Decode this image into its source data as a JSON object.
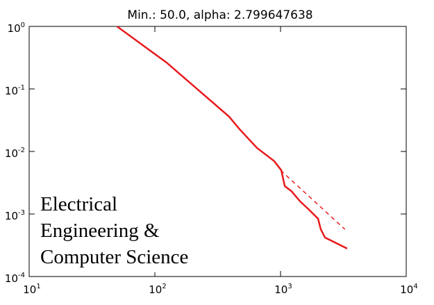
{
  "chart_data": {
    "type": "line",
    "title": "Min.: 50.0, alpha: 2.799647638",
    "xscale": "log",
    "yscale": "log",
    "xlim": [
      10,
      10000
    ],
    "ylim": [
      0.0001,
      1
    ],
    "xticks": [
      {
        "value": 10,
        "label": "10",
        "exponent": "1"
      },
      {
        "value": 100,
        "label": "10",
        "exponent": "2"
      },
      {
        "value": 1000,
        "label": "10",
        "exponent": "3"
      },
      {
        "value": 10000,
        "label": "10",
        "exponent": "4"
      }
    ],
    "yticks": [
      {
        "value": 1,
        "label": "10",
        "exponent": "0"
      },
      {
        "value": 0.1,
        "label": "10",
        "exponent": "-1"
      },
      {
        "value": 0.01,
        "label": "10",
        "exponent": "-2"
      },
      {
        "value": 0.001,
        "label": "10",
        "exponent": "-3"
      },
      {
        "value": 0.0001,
        "label": "10",
        "exponent": "-4"
      }
    ],
    "series": [
      {
        "color": "#e8191b",
        "style": "solid",
        "x": [
          50,
          124,
          390,
          472,
          649,
          891,
          1014,
          1080,
          1225,
          1428,
          1686,
          1988,
          2090,
          2258,
          3390
        ],
        "values": [
          1,
          0.264,
          0.036,
          0.0227,
          0.0114,
          0.007,
          0.005,
          0.0028,
          0.0023,
          0.0016,
          0.00117,
          0.00084,
          0.00057,
          0.00042,
          0.00028
        ]
      },
      {
        "color": "#e8191b",
        "style": "dashed",
        "x": [
          1000,
          3250
        ],
        "values": [
          0.005,
          0.00057
        ]
      }
    ],
    "annotation": [
      "Electrical",
      "Engineering &",
      "Computer Science"
    ]
  }
}
